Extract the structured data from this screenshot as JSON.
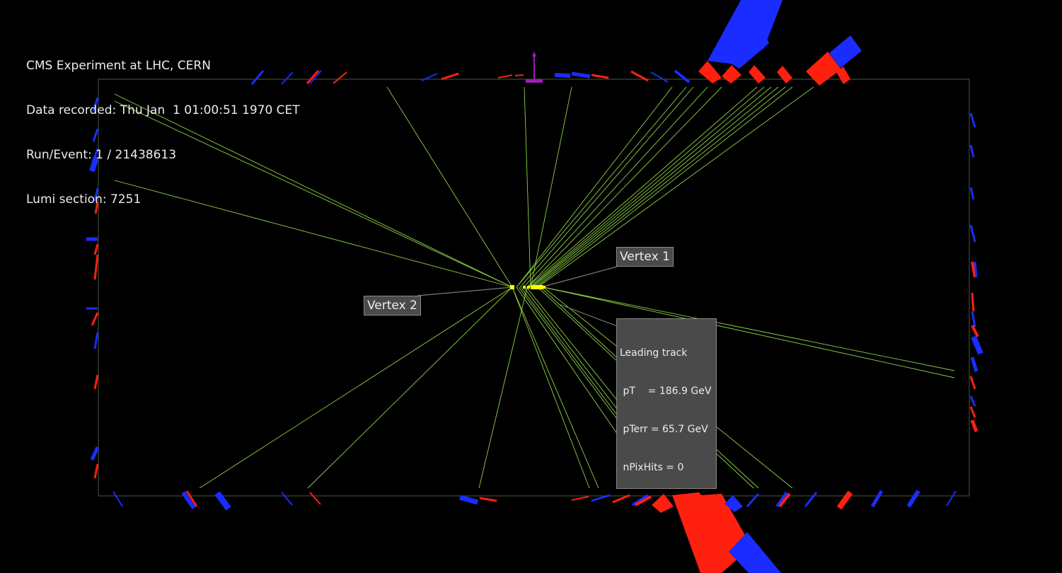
{
  "header": {
    "line1": "CMS Experiment at LHC, CERN",
    "line2": "Data recorded: Thu Jan  1 01:00:51 1970 CET",
    "line3": "Run/Event: 1 / 21438613",
    "line4": "Lumi section: 7251"
  },
  "labels": {
    "vertex1": "Vertex 1",
    "vertex2": "Vertex 2",
    "leading_track": {
      "title": "Leading track",
      "pt": " pT    = 186.9 GeV",
      "pterr": " pTerr = 65.7 GeV",
      "npix": " nPixHits = 0"
    }
  },
  "colors": {
    "background": "#000000",
    "track": "#8fd147",
    "detector_frame": "#4a5a3a",
    "ecal": "#ff2010",
    "hcal": "#1a2cff",
    "vertex": "#ffff00",
    "axis": "#9b1fb4"
  }
}
